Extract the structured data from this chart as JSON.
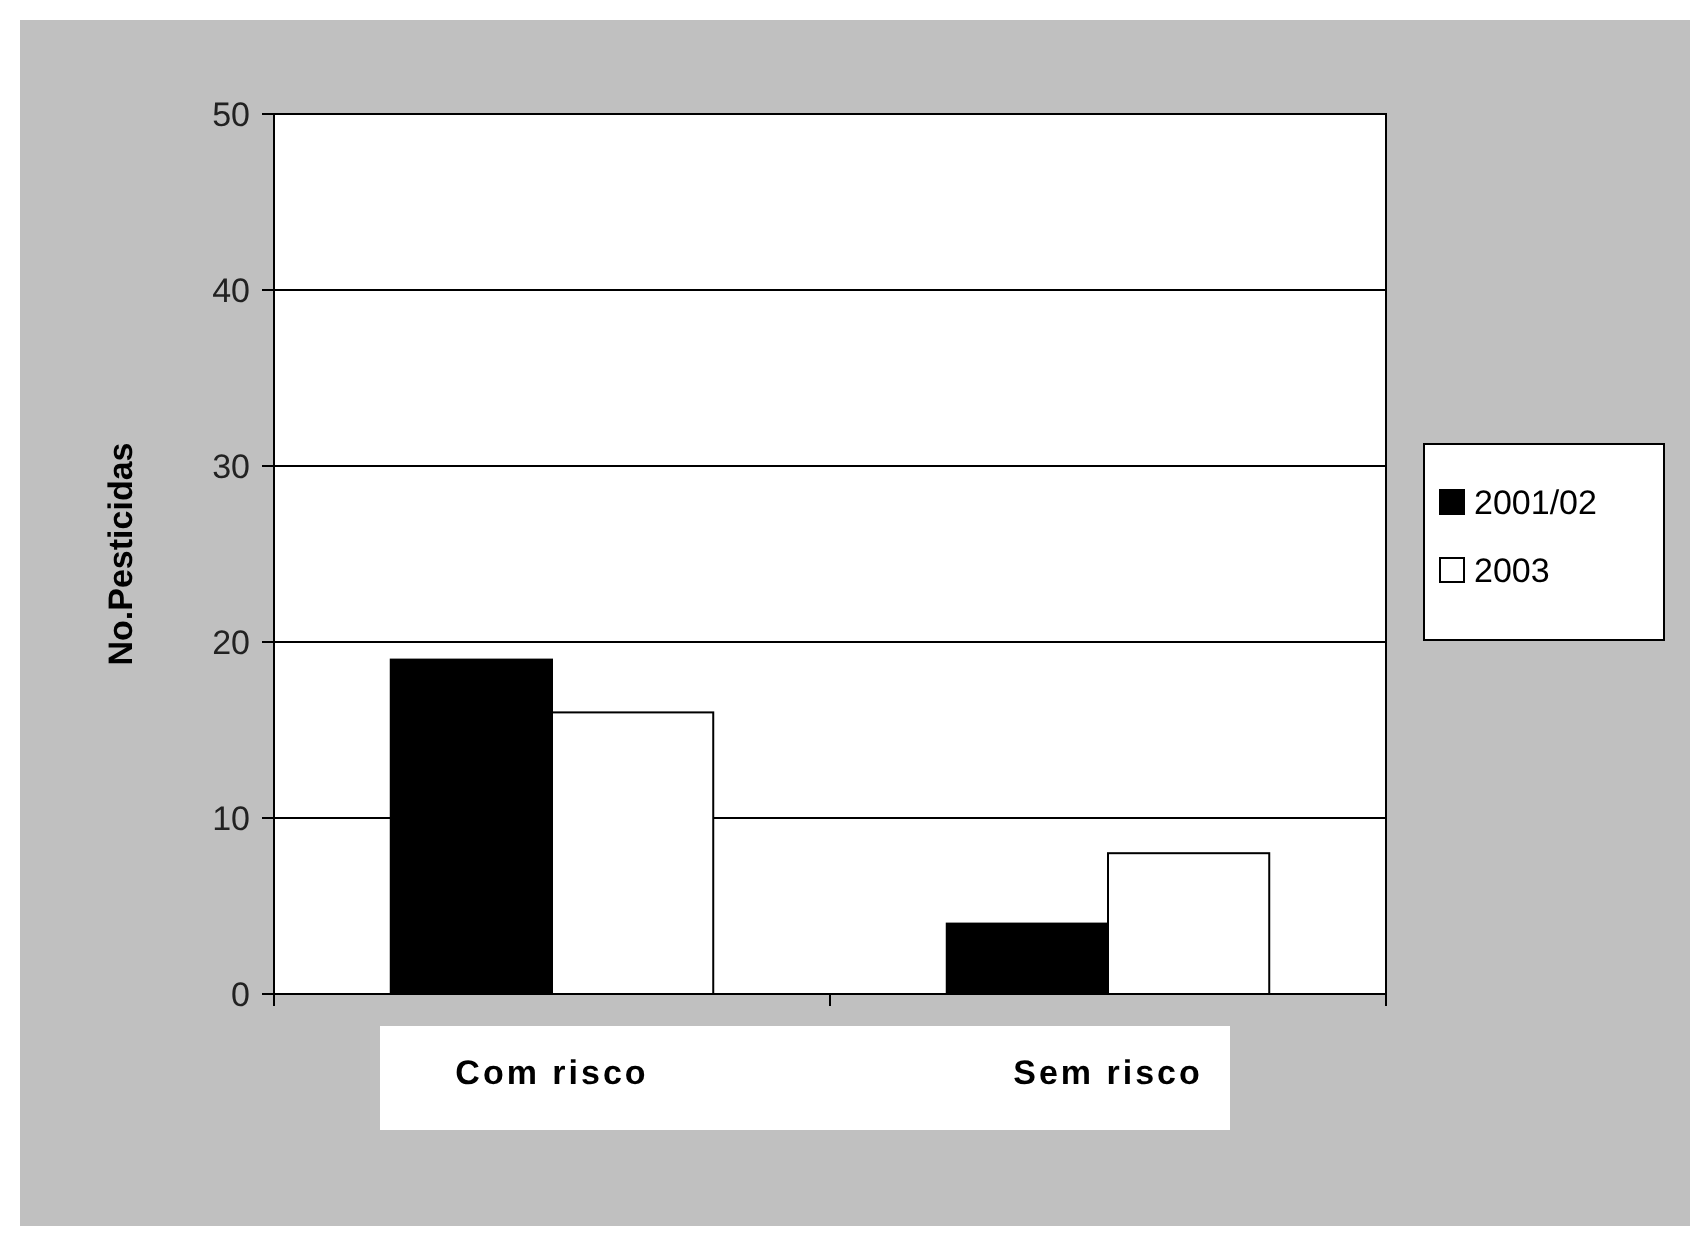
{
  "chart_data": {
    "type": "bar",
    "ylabel": "No.Pesticidas",
    "categories": [
      "Com risco",
      "Sem risco"
    ],
    "series": [
      {
        "name": "2001/02",
        "color": "#000000",
        "values": [
          19,
          4
        ]
      },
      {
        "name": "2003",
        "color": "#ffffff",
        "values": [
          16,
          8
        ]
      }
    ],
    "ylim": [
      0,
      50
    ],
    "yticks": [
      0,
      10,
      20,
      30,
      40,
      50
    ],
    "grid": "y",
    "legend": "right"
  }
}
